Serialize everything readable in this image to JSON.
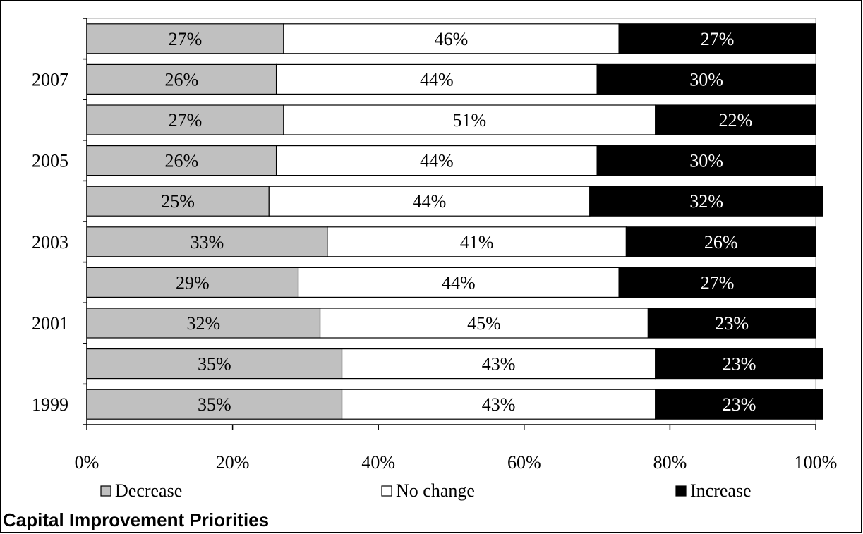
{
  "caption": "Capital Improvement Priorities",
  "colors": {
    "decrease": "#c0c0c0",
    "no_change": "#ffffff",
    "increase": "#000000"
  },
  "legend": [
    {
      "name": "Decrease",
      "color": "#c0c0c0"
    },
    {
      "name": "No change",
      "color": "#ffffff"
    },
    {
      "name": "Increase",
      "color": "#000000"
    }
  ],
  "chart_data": {
    "type": "bar",
    "orientation": "horizontal",
    "stacked": true,
    "categories": [
      "",
      "2007",
      "",
      "2005",
      "",
      "2003",
      "",
      "2001",
      "",
      "1999"
    ],
    "series": [
      {
        "name": "Decrease",
        "values": [
          27,
          26,
          27,
          26,
          25,
          33,
          29,
          32,
          35,
          35
        ],
        "labels": [
          "27%",
          "26%",
          "27%",
          "26%",
          "25%",
          "33%",
          "29%",
          "32%",
          "35%",
          "35%"
        ]
      },
      {
        "name": "No change",
        "values": [
          46,
          44,
          51,
          44,
          44,
          41,
          44,
          45,
          43,
          43
        ],
        "labels": [
          "46%",
          "44%",
          "51%",
          "44%",
          "44%",
          "41%",
          "44%",
          "45%",
          "43%",
          "43%"
        ]
      },
      {
        "name": "Increase",
        "values": [
          27,
          30,
          22,
          30,
          32,
          26,
          27,
          23,
          23,
          23
        ],
        "labels": [
          "27%",
          "30%",
          "22%",
          "30%",
          "32%",
          "26%",
          "27%",
          "23%",
          "23%",
          "23%"
        ]
      }
    ],
    "xlim": [
      0,
      100
    ],
    "xticks": [
      0,
      20,
      40,
      60,
      80,
      100
    ],
    "xtick_labels": [
      "0%",
      "20%",
      "40%",
      "60%",
      "80%",
      "100%"
    ],
    "grid": false,
    "legend_position": "bottom"
  }
}
